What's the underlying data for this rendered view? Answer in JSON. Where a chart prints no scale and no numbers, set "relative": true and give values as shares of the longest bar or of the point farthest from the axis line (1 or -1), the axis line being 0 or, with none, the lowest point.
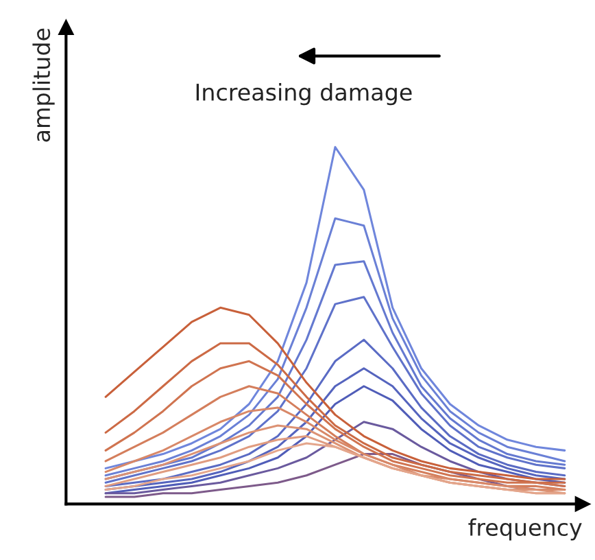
{
  "chart_data": {
    "type": "line",
    "relative": true,
    "xlabel": "frequency",
    "ylabel": "amplitude",
    "annotations": [
      "Increasing damage"
    ],
    "legend": false,
    "grid": false,
    "marker": "none",
    "line_style": "solid",
    "categories": [
      null,
      null,
      null,
      null,
      null,
      null,
      null,
      null,
      null,
      null,
      null,
      null,
      null,
      null,
      null,
      null,
      null
    ],
    "series": [
      {
        "color": "#6f86dc",
        "values": [
          0.1,
          0.12,
          0.14,
          0.17,
          0.21,
          0.28,
          0.4,
          0.62,
          1.0,
          0.88,
          0.55,
          0.38,
          0.28,
          0.22,
          0.18,
          0.16,
          0.15
        ]
      },
      {
        "color": "#6a80d6",
        "values": [
          0.08,
          0.1,
          0.12,
          0.15,
          0.19,
          0.25,
          0.35,
          0.55,
          0.8,
          0.78,
          0.52,
          0.36,
          0.26,
          0.2,
          0.16,
          0.14,
          0.12
        ]
      },
      {
        "color": "#6479d0",
        "values": [
          0.07,
          0.09,
          0.11,
          0.13,
          0.17,
          0.22,
          0.3,
          0.46,
          0.67,
          0.68,
          0.48,
          0.33,
          0.24,
          0.18,
          0.14,
          0.12,
          0.11
        ]
      },
      {
        "color": "#5f72ca",
        "values": [
          0.06,
          0.08,
          0.1,
          0.12,
          0.15,
          0.19,
          0.26,
          0.38,
          0.56,
          0.58,
          0.44,
          0.31,
          0.22,
          0.16,
          0.13,
          0.11,
          0.1
        ]
      },
      {
        "color": "#5a6bc4",
        "values": [
          0.05,
          0.06,
          0.07,
          0.09,
          0.11,
          0.14,
          0.19,
          0.28,
          0.4,
          0.46,
          0.38,
          0.27,
          0.19,
          0.14,
          0.11,
          0.09,
          0.08
        ]
      },
      {
        "color": "#5564be",
        "values": [
          0.04,
          0.05,
          0.06,
          0.07,
          0.09,
          0.12,
          0.16,
          0.23,
          0.33,
          0.38,
          0.33,
          0.24,
          0.17,
          0.13,
          0.1,
          0.08,
          0.07
        ]
      },
      {
        "color": "#505db8",
        "values": [
          0.03,
          0.04,
          0.05,
          0.06,
          0.08,
          0.1,
          0.13,
          0.19,
          0.28,
          0.33,
          0.29,
          0.21,
          0.15,
          0.11,
          0.09,
          0.07,
          0.06
        ]
      },
      {
        "color": "#6a5a9e",
        "values": [
          0.03,
          0.03,
          0.04,
          0.05,
          0.06,
          0.08,
          0.1,
          0.13,
          0.18,
          0.23,
          0.21,
          0.16,
          0.12,
          0.09,
          0.07,
          0.06,
          0.05
        ]
      },
      {
        "color": "#7d5a8a",
        "values": [
          0.02,
          0.02,
          0.03,
          0.03,
          0.04,
          0.05,
          0.06,
          0.08,
          0.11,
          0.14,
          0.14,
          0.11,
          0.09,
          0.07,
          0.05,
          0.04,
          0.04
        ]
      },
      {
        "color": "#c8603a",
        "values": [
          0.3,
          0.37,
          0.44,
          0.51,
          0.55,
          0.53,
          0.45,
          0.34,
          0.25,
          0.19,
          0.15,
          0.12,
          0.1,
          0.09,
          0.08,
          0.07,
          0.07
        ]
      },
      {
        "color": "#cc6a45",
        "values": [
          0.2,
          0.26,
          0.33,
          0.4,
          0.45,
          0.45,
          0.39,
          0.3,
          0.22,
          0.17,
          0.13,
          0.11,
          0.09,
          0.08,
          0.07,
          0.06,
          0.06
        ]
      },
      {
        "color": "#d07450",
        "values": [
          0.15,
          0.2,
          0.26,
          0.33,
          0.38,
          0.4,
          0.36,
          0.28,
          0.21,
          0.16,
          0.12,
          0.1,
          0.08,
          0.07,
          0.06,
          0.06,
          0.05
        ]
      },
      {
        "color": "#d47e5c",
        "values": [
          0.12,
          0.16,
          0.2,
          0.25,
          0.3,
          0.33,
          0.31,
          0.25,
          0.19,
          0.14,
          0.11,
          0.09,
          0.07,
          0.06,
          0.05,
          0.05,
          0.04
        ]
      },
      {
        "color": "#d88868",
        "values": [
          0.09,
          0.12,
          0.15,
          0.19,
          0.23,
          0.26,
          0.27,
          0.23,
          0.18,
          0.14,
          0.11,
          0.08,
          0.07,
          0.06,
          0.05,
          0.04,
          0.04
        ]
      },
      {
        "color": "#dc9274",
        "values": [
          0.07,
          0.09,
          0.11,
          0.14,
          0.17,
          0.2,
          0.22,
          0.21,
          0.17,
          0.13,
          0.1,
          0.08,
          0.06,
          0.05,
          0.04,
          0.04,
          0.03
        ]
      },
      {
        "color": "#e09c80",
        "values": [
          0.05,
          0.07,
          0.09,
          0.11,
          0.13,
          0.16,
          0.18,
          0.19,
          0.16,
          0.13,
          0.1,
          0.08,
          0.06,
          0.05,
          0.04,
          0.03,
          0.03
        ]
      },
      {
        "color": "#e4a68c",
        "values": [
          0.04,
          0.05,
          0.07,
          0.08,
          0.1,
          0.12,
          0.15,
          0.17,
          0.16,
          0.13,
          0.1,
          0.08,
          0.06,
          0.05,
          0.04,
          0.03,
          0.03
        ]
      }
    ]
  }
}
